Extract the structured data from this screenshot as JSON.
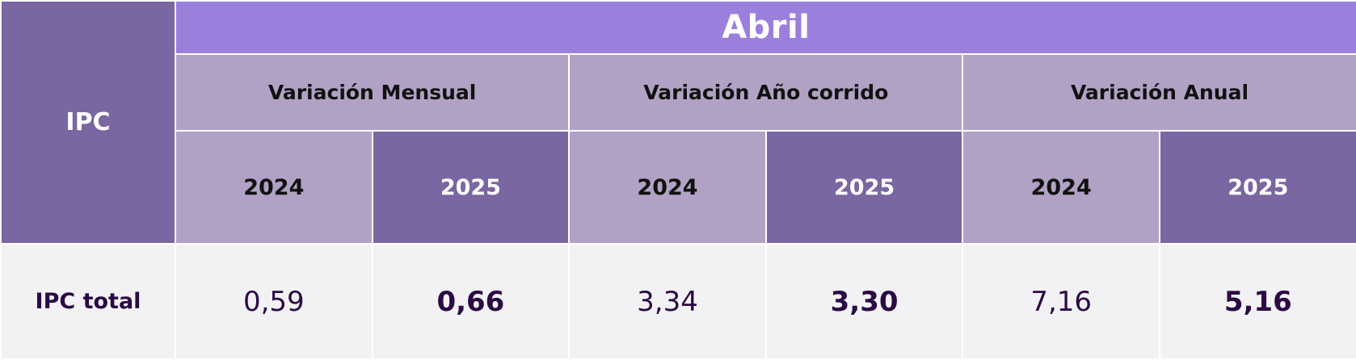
{
  "table": {
    "row_header": "IPC",
    "month": "Abril",
    "groups": [
      {
        "label": "Variación Mensual"
      },
      {
        "label": "Variación Año corrido"
      },
      {
        "label": "Variación Anual"
      }
    ],
    "years": [
      "2024",
      "2025",
      "2024",
      "2025",
      "2024",
      "2025"
    ],
    "rows": [
      {
        "label": "IPC total",
        "values": [
          "0,59",
          "0,66",
          "3,34",
          "3,30",
          "7,16",
          "5,16"
        ]
      }
    ]
  },
  "colors": {
    "month_header": "#9b7fdd",
    "dark_purple": "#7a66a1",
    "light_purple": "#b1a2c5",
    "data_background": "#f2f2f4",
    "value_text": "#2b0a45"
  }
}
